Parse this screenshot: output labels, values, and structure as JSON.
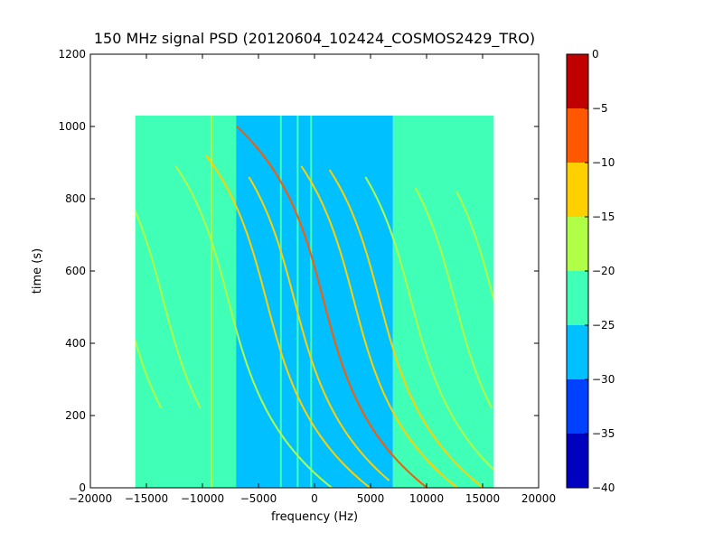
{
  "chart_data": {
    "type": "heatmap",
    "title": "150 MHz signal PSD (20120604_102424_COSMOS2429_TRO)",
    "xlabel": "frequency (Hz)",
    "ylabel": "time (s)",
    "xlim": [
      -20000,
      20000
    ],
    "ylim": [
      0,
      1200
    ],
    "xticks": [
      -20000,
      -15000,
      -10000,
      -5000,
      0,
      5000,
      10000,
      15000,
      20000
    ],
    "xtick_labels": [
      "−20000",
      "−15000",
      "−10000",
      "−5000",
      "0",
      "5000",
      "10000",
      "15000",
      "20000"
    ],
    "yticks": [
      0,
      200,
      400,
      600,
      800,
      1000,
      1200
    ],
    "ytick_labels": [
      "0",
      "200",
      "400",
      "600",
      "800",
      "1000",
      "1200"
    ],
    "data_extent": {
      "freq_min": -16000,
      "freq_max": 16000,
      "time_min": 0,
      "time_max": 1030
    },
    "regions": [
      {
        "freq": [
          -16000,
          -7000
        ],
        "level": -22.5
      },
      {
        "freq": [
          -7000,
          7000
        ],
        "level": -27.5
      },
      {
        "freq": [
          7000,
          16000
        ],
        "level": -22.5
      }
    ],
    "vertical_lines": [
      {
        "freq": -9200,
        "time": [
          0,
          1030
        ],
        "level": -17.5
      },
      {
        "freq": -7200,
        "time": [
          0,
          1030
        ],
        "level": -22.5
      },
      {
        "freq": -3000,
        "time": [
          0,
          1030
        ],
        "level": -22.5
      },
      {
        "freq": -1500,
        "time": [
          0,
          1030
        ],
        "level": -22.5
      },
      {
        "freq": -300,
        "time": [
          0,
          1030
        ],
        "level": -22.5
      }
    ],
    "traces": [
      {
        "offset": -17000,
        "level": -17.5,
        "time": [
          220,
          590
        ]
      },
      {
        "offset": -13500,
        "level": -17.5,
        "time": [
          220,
          820
        ]
      },
      {
        "offset": -7700,
        "level": -17.5,
        "time": [
          0,
          890
        ]
      },
      {
        "offset": -4300,
        "level": -12.5,
        "time": [
          0,
          920
        ]
      },
      {
        "offset": -1800,
        "level": -12.5,
        "time": [
          20,
          860
        ]
      },
      {
        "offset": 800,
        "level": -7.5,
        "time": [
          0,
          1000
        ]
      },
      {
        "offset": 3500,
        "level": -12.5,
        "time": [
          0,
          890
        ]
      },
      {
        "offset": 5800,
        "level": -12.5,
        "time": [
          0,
          880
        ]
      },
      {
        "offset": 8600,
        "level": -17.5,
        "time": [
          0,
          860
        ]
      },
      {
        "offset": 12500,
        "level": -17.5,
        "time": [
          220,
          830
        ]
      },
      {
        "offset": 16000,
        "level": -17.5,
        "time": [
          240,
          820
        ]
      }
    ],
    "colorbar": {
      "range": [
        -40,
        0
      ],
      "ticks": [
        0,
        -5,
        -10,
        -15,
        -20,
        -25,
        -30,
        -35,
        -40
      ],
      "tick_labels": [
        "0",
        "−5",
        "−10",
        "−15",
        "−20",
        "−25",
        "−30",
        "−35",
        "−40"
      ],
      "bands": [
        {
          "from": -40,
          "to": -35,
          "color": "#0000bf"
        },
        {
          "from": -35,
          "to": -30,
          "color": "#0040ff"
        },
        {
          "from": -30,
          "to": -25,
          "color": "#00c0ff"
        },
        {
          "from": -25,
          "to": -20,
          "color": "#40ffb7"
        },
        {
          "from": -20,
          "to": -15,
          "color": "#b0ff46"
        },
        {
          "from": -15,
          "to": -10,
          "color": "#ffd000"
        },
        {
          "from": -10,
          "to": -5,
          "color": "#ff5800"
        },
        {
          "from": -5,
          "to": 0,
          "color": "#c00000"
        }
      ]
    },
    "grid": false,
    "legend": "none"
  }
}
